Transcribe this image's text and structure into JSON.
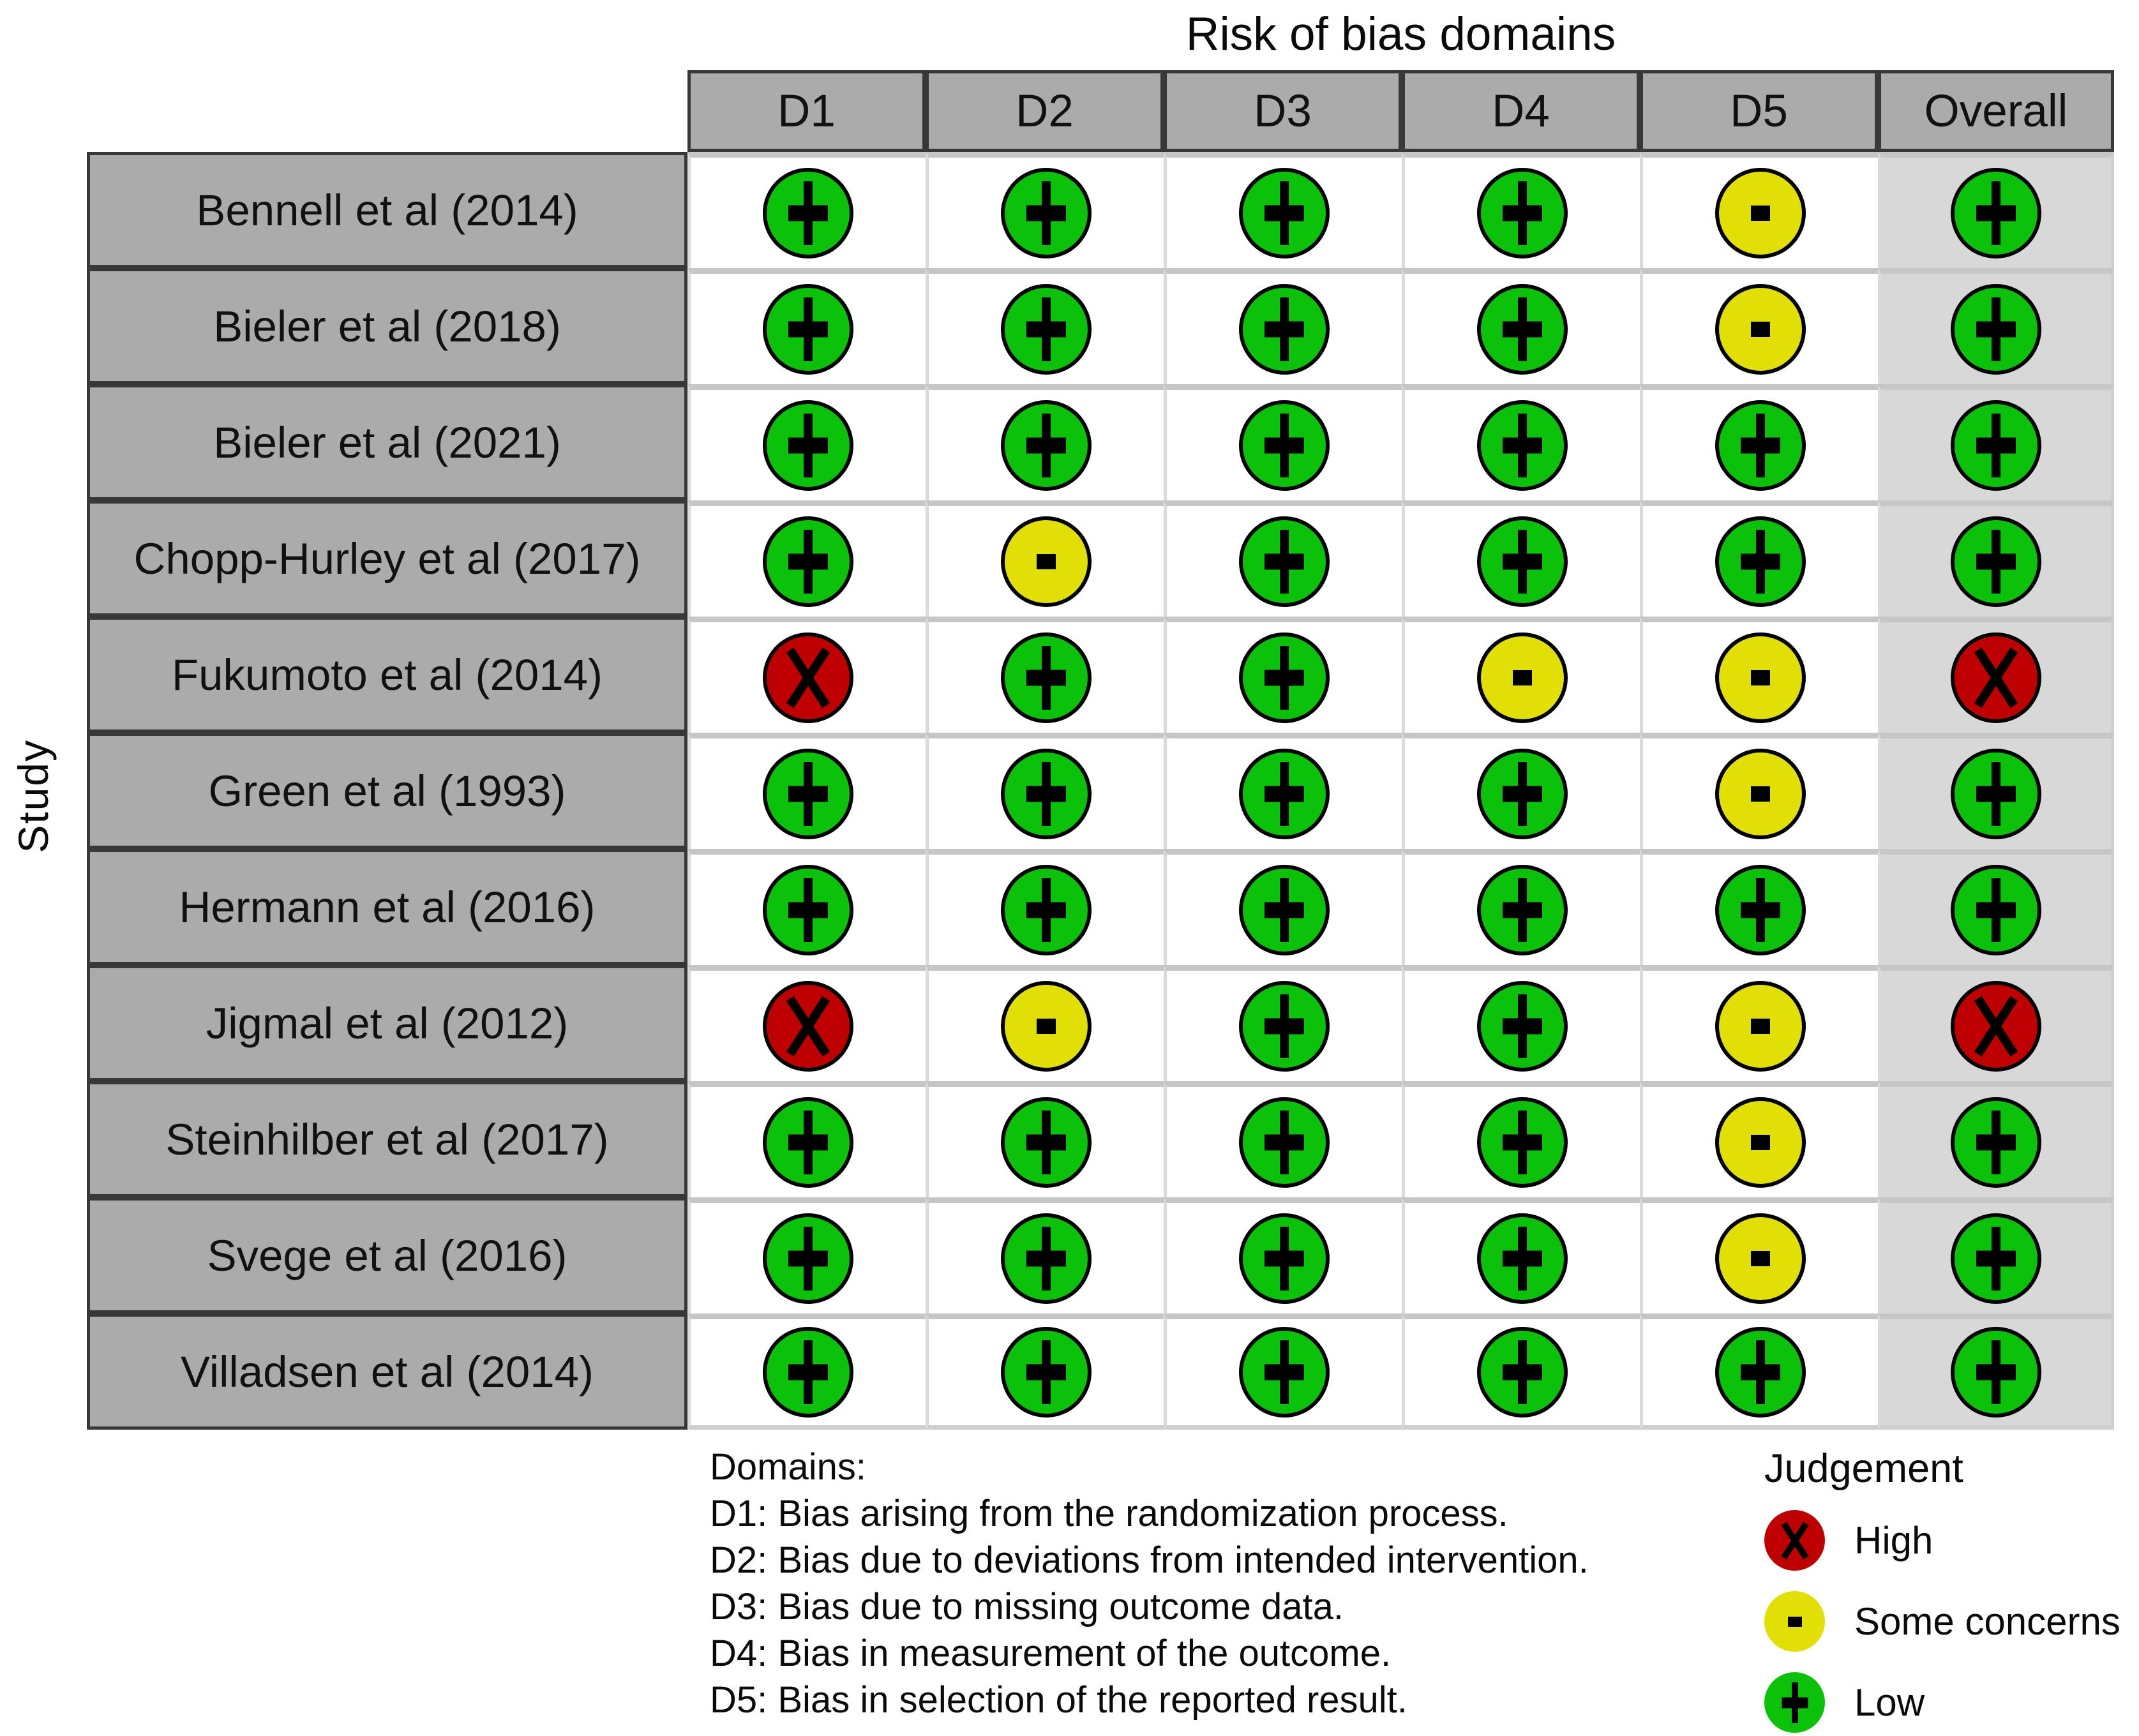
{
  "title": "Risk of bias domains",
  "axis": {
    "row_axis_label": "Study"
  },
  "footer": {
    "heading": "Domains:",
    "lines": [
      "D1: Bias arising from the randomization process.",
      "D2: Bias due to deviations from intended intervention.",
      "D3: Bias due to missing outcome data.",
      "D4: Bias in measurement of the outcome.",
      "D5: Bias in selection of the reported result."
    ]
  },
  "legend": {
    "title": "Judgement",
    "items": [
      {
        "key": "high",
        "label": "High",
        "symbol": "x-icon",
        "color": "#bf0000"
      },
      {
        "key": "some",
        "label": "Some concerns",
        "symbol": "minus-icon",
        "color": "#e2df07"
      },
      {
        "key": "low",
        "label": "Low",
        "symbol": "plus-icon",
        "color": "#0bc20b"
      }
    ]
  },
  "colors": {
    "low": "#0bc20b",
    "some_concerns": "#e2df07",
    "high": "#bf0000",
    "header_bg": "#ababab",
    "overall_column_bg": "#d8d8d8",
    "cell_border_dark": "#383838",
    "row_separator": "#c6c6c6",
    "column_separator": "#dadada"
  },
  "chart_data": {
    "type": "table",
    "title": "Risk of bias domains",
    "row_axis_label": "Study",
    "columns": [
      "D1",
      "D2",
      "D3",
      "D4",
      "D5",
      "Overall"
    ],
    "judgement_scale": {
      "low": "Low",
      "some": "Some concerns",
      "high": "High"
    },
    "rows": [
      {
        "study": "Bennell et al (2014)",
        "judgements": [
          "low",
          "low",
          "low",
          "low",
          "some",
          "low"
        ]
      },
      {
        "study": "Bieler et al (2018)",
        "judgements": [
          "low",
          "low",
          "low",
          "low",
          "some",
          "low"
        ]
      },
      {
        "study": "Bieler et al (2021)",
        "judgements": [
          "low",
          "low",
          "low",
          "low",
          "low",
          "low"
        ]
      },
      {
        "study": "Chopp-Hurley et al (2017)",
        "judgements": [
          "low",
          "some",
          "low",
          "low",
          "low",
          "low"
        ]
      },
      {
        "study": "Fukumoto et al (2014)",
        "judgements": [
          "high",
          "low",
          "low",
          "some",
          "some",
          "high"
        ]
      },
      {
        "study": "Green et al (1993)",
        "judgements": [
          "low",
          "low",
          "low",
          "low",
          "some",
          "low"
        ]
      },
      {
        "study": "Hermann et al (2016)",
        "judgements": [
          "low",
          "low",
          "low",
          "low",
          "low",
          "low"
        ]
      },
      {
        "study": "Jigmal et al (2012)",
        "judgements": [
          "high",
          "some",
          "low",
          "low",
          "some",
          "high"
        ]
      },
      {
        "study": "Steinhilber et al (2017)",
        "judgements": [
          "low",
          "low",
          "low",
          "low",
          "some",
          "low"
        ]
      },
      {
        "study": "Svege et al (2016)",
        "judgements": [
          "low",
          "low",
          "low",
          "low",
          "some",
          "low"
        ]
      },
      {
        "study": "Villadsen et al (2014)",
        "judgements": [
          "low",
          "low",
          "low",
          "low",
          "low",
          "low"
        ]
      }
    ]
  }
}
